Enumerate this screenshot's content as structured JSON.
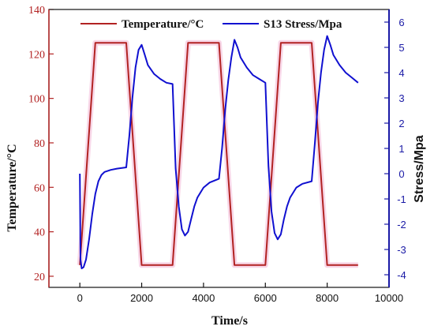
{
  "chart_data": {
    "type": "line",
    "xlabel": "Time/s",
    "ylabel_left": "Temperature/°C",
    "ylabel_right": "Stress/Mpa",
    "xlim": [
      -1000,
      10000
    ],
    "ylim_left": [
      15,
      140
    ],
    "ylim_right": [
      -4.5,
      6.5
    ],
    "x_ticks": [
      0,
      2000,
      4000,
      6000,
      8000,
      10000
    ],
    "y_left_ticks": [
      20,
      40,
      60,
      80,
      100,
      120,
      140
    ],
    "y_right_ticks": [
      -4,
      -3,
      -2,
      -1,
      0,
      1,
      2,
      3,
      4,
      5,
      6
    ],
    "grid": false,
    "legend_position": "top",
    "series": [
      {
        "name": "Temperature/°C",
        "axis": "left",
        "color": "#b22222",
        "x": [
          0,
          500,
          1500,
          2000,
          3000,
          3500,
          4500,
          5000,
          6000,
          6500,
          7500,
          8000,
          9000
        ],
        "y": [
          25,
          125,
          125,
          25,
          25,
          125,
          125,
          25,
          25,
          125,
          125,
          25,
          25
        ]
      },
      {
        "name": "S13 Stress/Mpa",
        "axis": "right",
        "color": "#1010d0",
        "x": [
          0,
          20,
          60,
          120,
          200,
          300,
          400,
          500,
          600,
          700,
          800,
          1000,
          1200,
          1500,
          1600,
          1700,
          1800,
          1900,
          2000,
          2100,
          2200,
          2400,
          2600,
          2800,
          3000,
          3100,
          3200,
          3300,
          3400,
          3500,
          3600,
          3700,
          3800,
          4000,
          4200,
          4500,
          4600,
          4700,
          4800,
          4900,
          5000,
          5100,
          5200,
          5400,
          5600,
          5800,
          6000,
          6100,
          6200,
          6300,
          6400,
          6500,
          6600,
          6700,
          6800,
          7000,
          7200,
          7500,
          7600,
          7700,
          7800,
          7900,
          8000,
          8100,
          8200,
          8400,
          8600,
          8800,
          9000
        ],
        "y": [
          0,
          -3.4,
          -3.75,
          -3.7,
          -3.4,
          -2.6,
          -1.6,
          -0.8,
          -0.3,
          -0.05,
          0.07,
          0.15,
          0.2,
          0.25,
          1.5,
          3.0,
          4.2,
          4.9,
          5.1,
          4.7,
          4.3,
          3.95,
          3.75,
          3.6,
          3.55,
          0.2,
          -1.3,
          -2.2,
          -2.45,
          -2.3,
          -1.8,
          -1.3,
          -0.95,
          -0.55,
          -0.35,
          -0.2,
          1.0,
          2.5,
          3.7,
          4.6,
          5.3,
          5.0,
          4.6,
          4.2,
          3.9,
          3.75,
          3.6,
          0.3,
          -1.5,
          -2.35,
          -2.6,
          -2.4,
          -1.8,
          -1.3,
          -0.95,
          -0.55,
          -0.4,
          -0.3,
          1.2,
          2.8,
          4.0,
          4.9,
          5.45,
          5.1,
          4.7,
          4.3,
          4.0,
          3.8,
          3.6
        ]
      }
    ]
  }
}
